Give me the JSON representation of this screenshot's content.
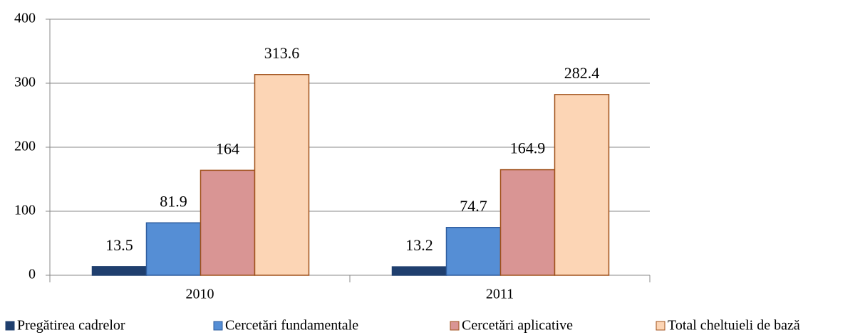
{
  "chart_data": {
    "type": "bar",
    "categories": [
      "2010",
      "2011"
    ],
    "series": [
      {
        "name": "Pregătirea cadrelor",
        "color": "#1f3f6e",
        "edge": "#1f3f6e",
        "values": [
          13.5,
          13.2
        ]
      },
      {
        "name": "Cercetări fundamentale",
        "color": "#558ed5",
        "edge": "#2e5c9e",
        "values": [
          81.9,
          74.7
        ]
      },
      {
        "name": "Cercetări aplicative",
        "color": "#d99594",
        "edge": "#a0521c",
        "values": [
          164,
          164.9
        ]
      },
      {
        "name": "Total cheltuieli de bază",
        "color": "#fcd5b5",
        "edge": "#a0521c",
        "values": [
          313.6,
          282.4
        ]
      }
    ],
    "ylim": [
      0,
      400
    ],
    "yticks": [
      0,
      100,
      200,
      300,
      400
    ],
    "grid": true,
    "legend": "bottom"
  }
}
